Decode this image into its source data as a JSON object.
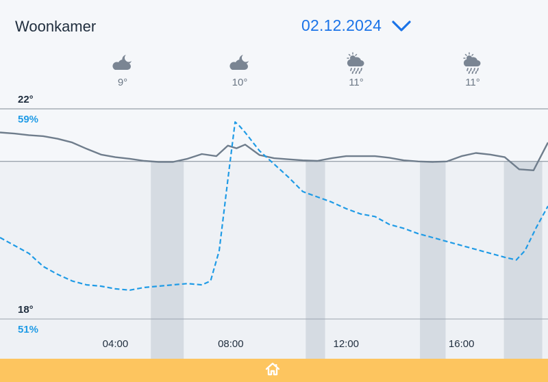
{
  "header": {
    "room": "Woonkamer",
    "date": "02.12.2024"
  },
  "weather": [
    {
      "icon": "night-cloudy-icon",
      "temp": "9°"
    },
    {
      "icon": "night-cloudy-icon",
      "temp": "10°"
    },
    {
      "icon": "sun-rain-icon",
      "temp": "11°"
    },
    {
      "icon": "sun-rain-icon",
      "temp": "11°"
    }
  ],
  "colors": {
    "temperature": "#6f7d8c",
    "humidity": "#1f9be6",
    "shade": "#d5dbe2",
    "footer": "#fdc55f"
  },
  "chart_data": {
    "type": "line",
    "x_unit": "hours",
    "xlim": [
      0,
      19
    ],
    "x_ticks": [
      "04:00",
      "08:00",
      "12:00",
      "16:00"
    ],
    "axis_left": {
      "top_label": "22°",
      "bottom_label": "18°",
      "ylim": [
        18,
        22
      ]
    },
    "axis_right": {
      "top_label": "59%",
      "bottom_label": "51%",
      "ylim": [
        51,
        59
      ]
    },
    "reference_line": {
      "axis": "temperature",
      "value": 21
    },
    "shaded_periods": [
      [
        5.23,
        6.37
      ],
      [
        10.6,
        11.27
      ],
      [
        14.56,
        15.45
      ],
      [
        17.47,
        18.8
      ]
    ],
    "series": [
      {
        "axis": "temperature",
        "style": "solid",
        "x": [
          0,
          0.5,
          1,
          1.5,
          2,
          2.5,
          3,
          3.5,
          4,
          4.5,
          5,
          5.5,
          6,
          6.5,
          7,
          7.5,
          7.9,
          8.2,
          8.5,
          9,
          9.5,
          10,
          10.5,
          11,
          11.5,
          12,
          12.5,
          13,
          13.5,
          14,
          14.5,
          15,
          15.5,
          16,
          16.5,
          17,
          17.5,
          18,
          18.5,
          19
        ],
        "y": [
          21.55,
          21.53,
          21.5,
          21.48,
          21.43,
          21.36,
          21.24,
          21.13,
          21.08,
          21.05,
          21.01,
          20.99,
          20.99,
          21.05,
          21.14,
          21.1,
          21.3,
          21.25,
          21.32,
          21.12,
          21.06,
          21.04,
          21.02,
          21.01,
          21.06,
          21.1,
          21.1,
          21.1,
          21.07,
          21.02,
          21.0,
          20.99,
          21.0,
          21.1,
          21.16,
          21.13,
          21.08,
          20.85,
          20.83,
          21.36
        ]
      },
      {
        "axis": "humidity",
        "style": "dashed",
        "x": [
          0,
          0.5,
          1,
          1.5,
          2,
          2.5,
          3,
          3.5,
          4,
          4.5,
          5,
          5.5,
          6,
          6.5,
          7,
          7.3,
          7.6,
          7.9,
          8.15,
          8.3,
          8.5,
          9,
          9.5,
          10,
          10.5,
          11,
          11.5,
          12,
          12.5,
          13,
          13.5,
          14,
          14.5,
          15,
          15.5,
          16,
          16.5,
          17,
          17.5,
          17.9,
          18.2,
          18.6,
          19
        ],
        "y": [
          54.1,
          53.8,
          53.5,
          53.0,
          52.7,
          52.45,
          52.3,
          52.25,
          52.15,
          52.1,
          52.2,
          52.25,
          52.3,
          52.35,
          52.3,
          52.45,
          53.6,
          56.3,
          58.5,
          58.35,
          58.1,
          57.4,
          56.9,
          56.4,
          55.85,
          55.65,
          55.45,
          55.2,
          55.0,
          54.9,
          54.6,
          54.45,
          54.25,
          54.1,
          53.95,
          53.8,
          53.65,
          53.5,
          53.35,
          53.25,
          53.6,
          54.5,
          55.3
        ]
      }
    ]
  }
}
